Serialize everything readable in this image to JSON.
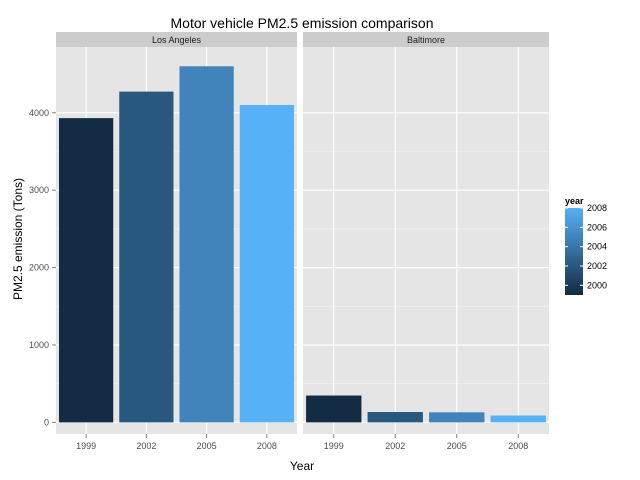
{
  "chart_data": {
    "type": "bar",
    "title": "Motor vehicle PM2.5 emission comparison",
    "xlabel": "Year",
    "ylabel": "PM2.5 emission (Tons)",
    "categories": [
      "1999",
      "2002",
      "2005",
      "2008"
    ],
    "ylim": [
      -150,
      4850
    ],
    "yticks": [
      0,
      1000,
      2000,
      3000,
      4000
    ],
    "grid": true,
    "legend_position": "right",
    "facets": [
      {
        "name": "Los Angeles",
        "values": [
          3931,
          4274,
          4601,
          4101
        ]
      },
      {
        "name": "Baltimore",
        "values": [
          347,
          134,
          130,
          89
        ]
      }
    ],
    "legend": {
      "title": "year",
      "labels": [
        "2008",
        "2006",
        "2004",
        "2002",
        "2000"
      ],
      "range": [
        1999,
        2008
      ],
      "color_low": "#132B43",
      "color_high": "#56B1F7"
    }
  }
}
